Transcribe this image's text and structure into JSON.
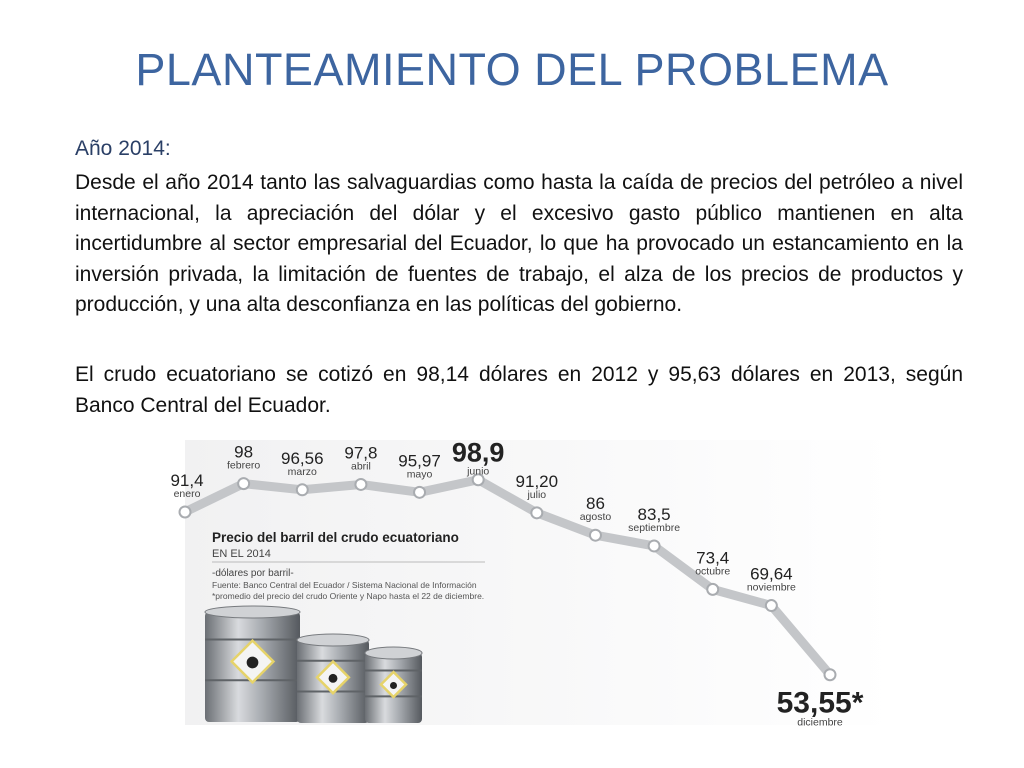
{
  "slide": {
    "title": "PLANTEAMIENTO DEL PROBLEMA",
    "year_label": "Año 2014:",
    "paragraphs": [
      "Desde el año 2014 tanto las salvaguardias como hasta la caída de precios del petróleo a nivel internacional, la apreciación del dólar y el excesivo gasto público mantienen en alta incertidumbre al sector empresarial del Ecuador, lo que ha provocado un estancamiento en la inversión privada, la limitación de fuentes de trabajo, el alza de los precios de productos y producción, y una alta desconfianza en las políticas del gobierno.",
      "El crudo ecuatoriano se cotizó en 98,14 dólares en 2012 y 95,63 dólares en 2013, según Banco Central del Ecuador."
    ]
  },
  "chart_data": {
    "type": "line",
    "title": "Precio del barril del crudo ecuatoriano",
    "subtitle": "EN EL 2014",
    "unit_label": "-dólares por barril-",
    "source": "Fuente: Banco Central del Ecuador / Sistema Nacional de Información",
    "footnote": "*promedio del precio del crudo Oriente y Napo hasta el 22 de diciembre.",
    "categories": [
      "enero",
      "febrero",
      "marzo",
      "abril",
      "mayo",
      "junio",
      "julio",
      "agosto",
      "septiembre",
      "octubre",
      "noviembre",
      "diciembre"
    ],
    "value_labels": [
      "91,4",
      "98",
      "96,56",
      "97,8",
      "95,97",
      "98,9",
      "91,20",
      "86",
      "83,5",
      "73,4",
      "69,64",
      "53,55*"
    ],
    "values": [
      91.4,
      98,
      96.56,
      97.8,
      95.97,
      98.9,
      91.2,
      86,
      83.5,
      73.4,
      69.64,
      53.55
    ],
    "colors": {
      "line": "#c4c6c9",
      "text": "#222222",
      "barrel": "#9a9ea3",
      "hazard": "#e6d36a"
    }
  }
}
